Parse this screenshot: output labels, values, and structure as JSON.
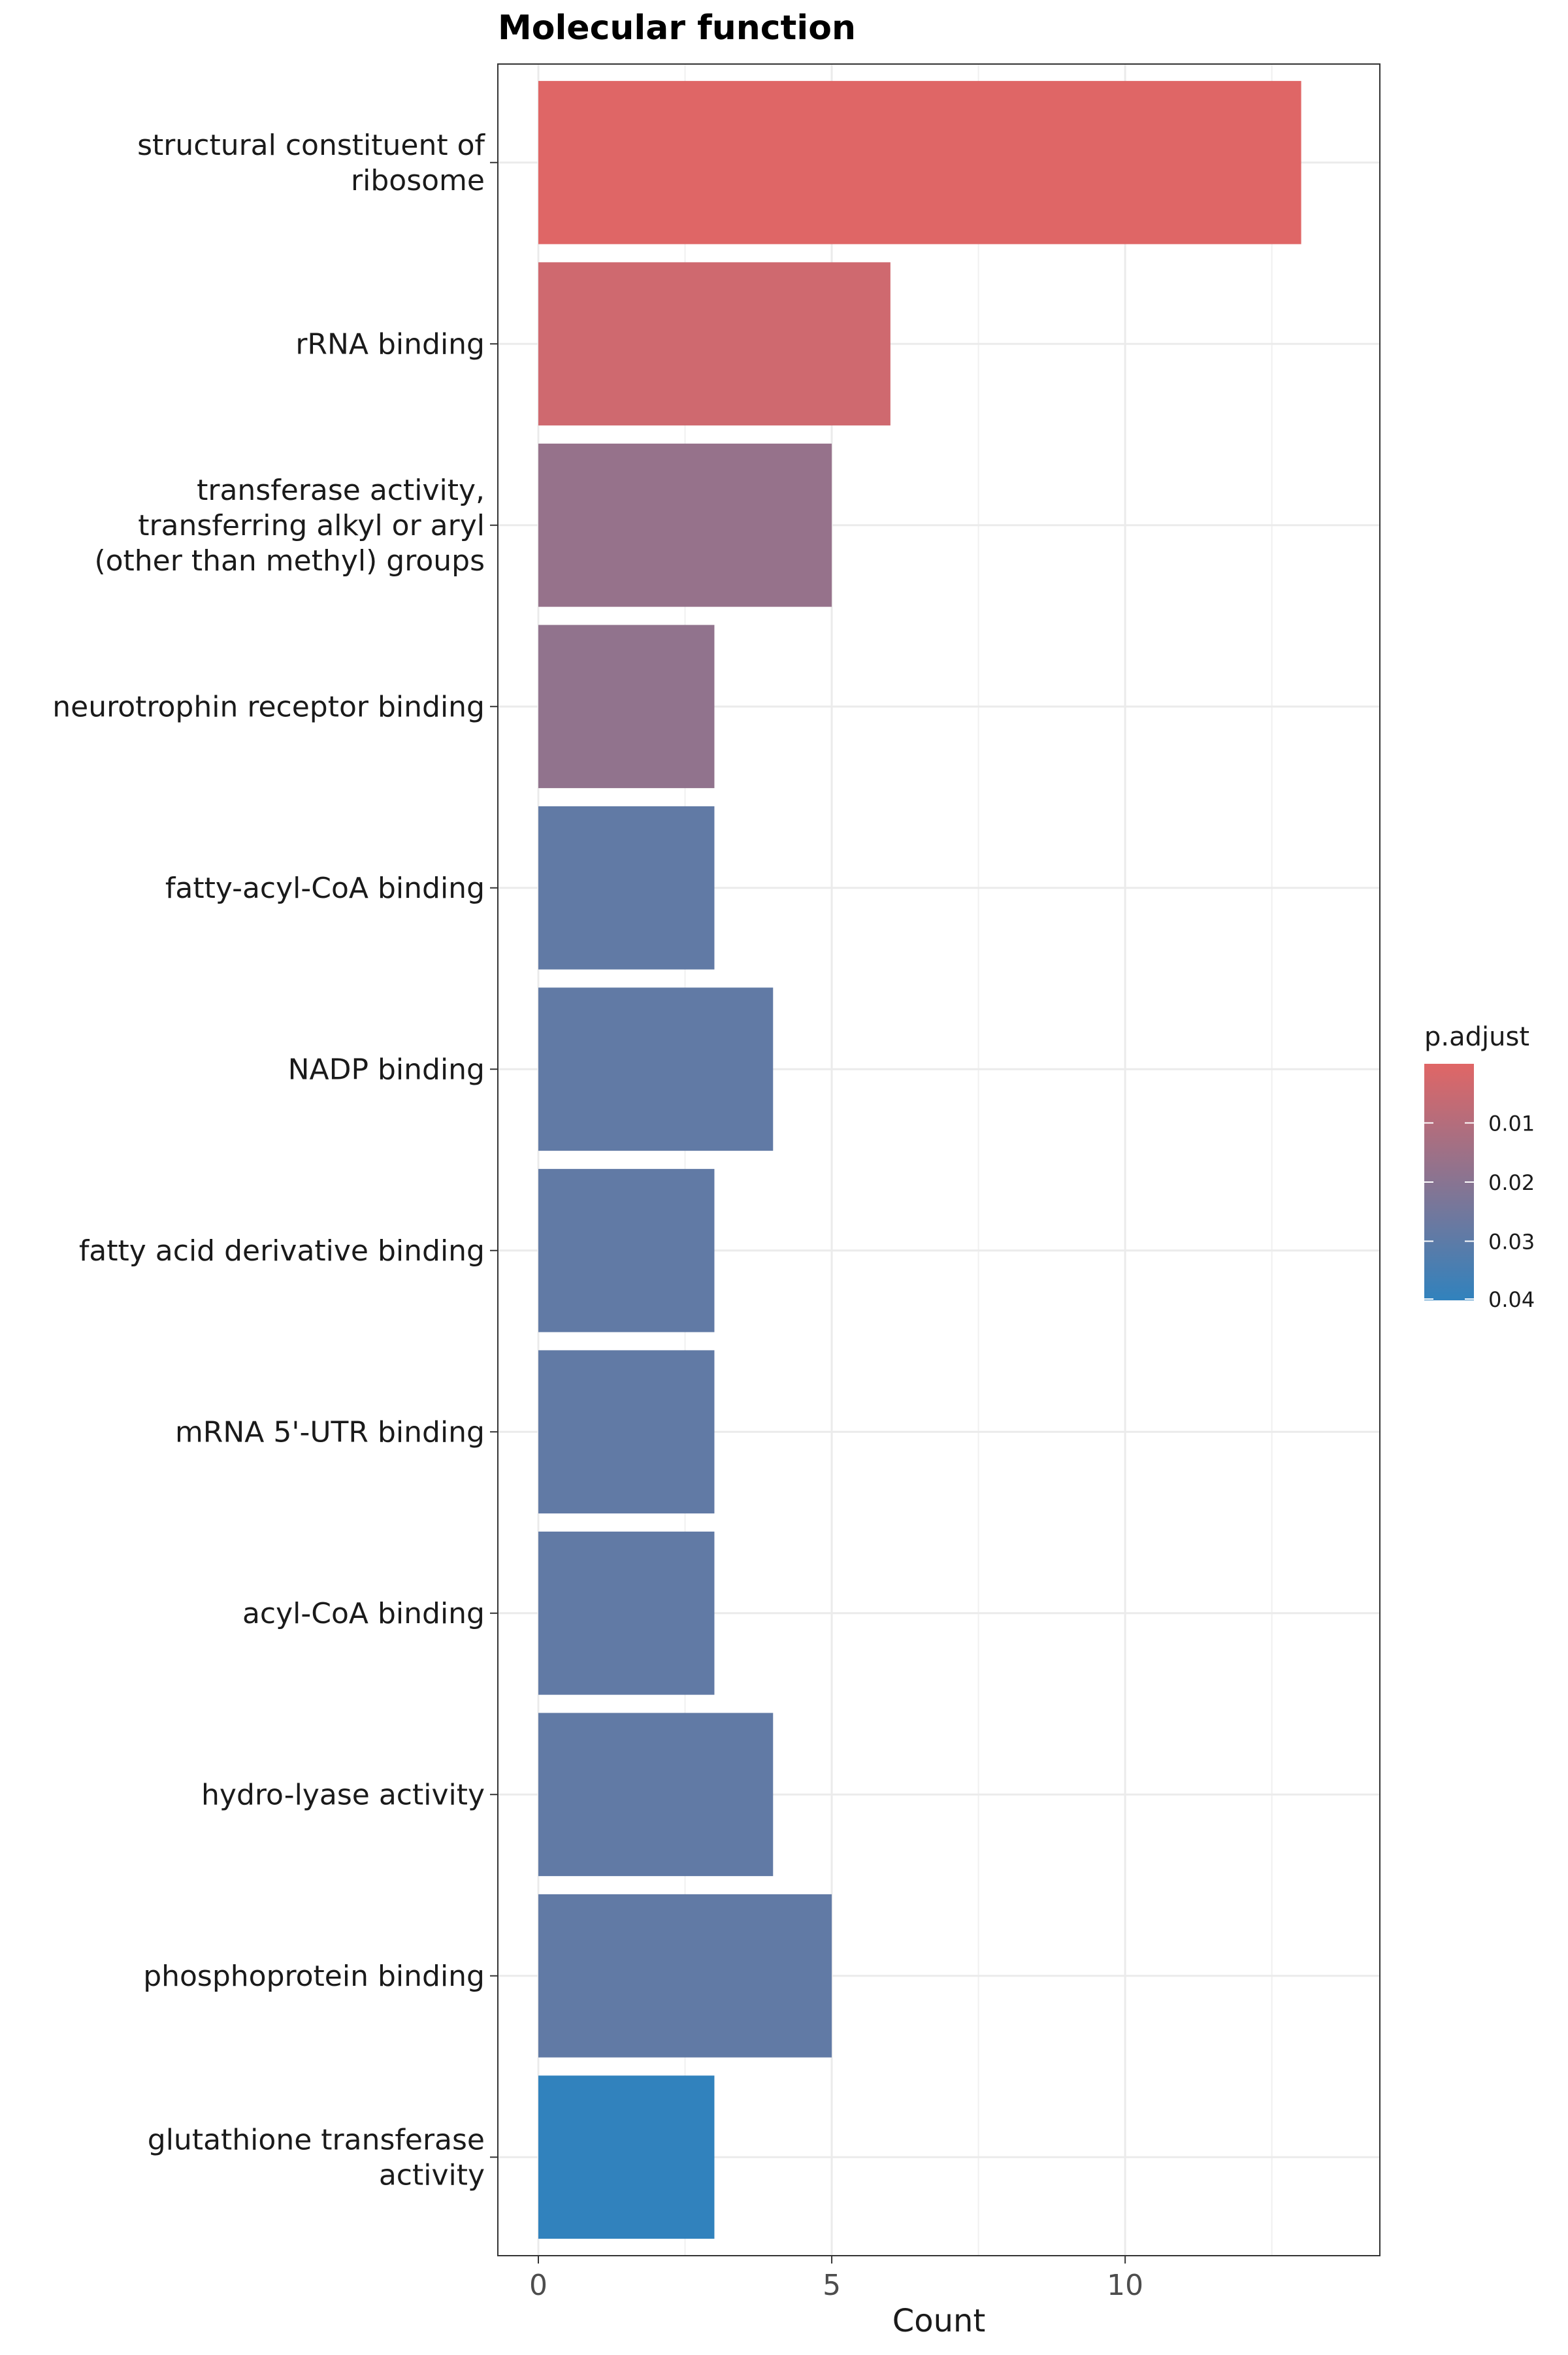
{
  "chart_data": {
    "type": "bar",
    "orientation": "horizontal",
    "title": "Molecular function",
    "xlabel": "Count",
    "ylabel": "",
    "xlim": [
      0,
      13.65
    ],
    "xticks": [
      0,
      5,
      10
    ],
    "grid": true,
    "legend": {
      "title": "p.adjust",
      "position": "right",
      "type": "gradient",
      "range": [
        0,
        0.04
      ],
      "low_color": "#e06666",
      "high_color": "#3182bd",
      "ticks": [
        "0.01",
        "0.02",
        "0.03",
        "0.04"
      ]
    },
    "categories": [
      {
        "lines": [
          "structural constituent of",
          "ribosome"
        ],
        "count": 13,
        "p_adjust": 0.0002
      },
      {
        "lines": [
          "rRNA binding"
        ],
        "count": 6,
        "p_adjust": 0.004
      },
      {
        "lines": [
          "transferase activity,",
          "transferring alkyl or aryl",
          "(other than methyl) groups"
        ],
        "count": 5,
        "p_adjust": 0.017
      },
      {
        "lines": [
          "neurotrophin receptor binding"
        ],
        "count": 3,
        "p_adjust": 0.018
      },
      {
        "lines": [
          "fatty-acyl-CoA binding"
        ],
        "count": 3,
        "p_adjust": 0.029
      },
      {
        "lines": [
          "NADP binding"
        ],
        "count": 4,
        "p_adjust": 0.029
      },
      {
        "lines": [
          "fatty acid derivative binding"
        ],
        "count": 3,
        "p_adjust": 0.029
      },
      {
        "lines": [
          "mRNA 5'-UTR binding"
        ],
        "count": 3,
        "p_adjust": 0.029
      },
      {
        "lines": [
          "acyl-CoA binding"
        ],
        "count": 3,
        "p_adjust": 0.029
      },
      {
        "lines": [
          "hydro-lyase activity"
        ],
        "count": 4,
        "p_adjust": 0.029
      },
      {
        "lines": [
          "phosphoprotein binding"
        ],
        "count": 5,
        "p_adjust": 0.029
      },
      {
        "lines": [
          "glutathione transferase",
          "activity"
        ],
        "count": 3,
        "p_adjust": 0.0405
      }
    ]
  }
}
